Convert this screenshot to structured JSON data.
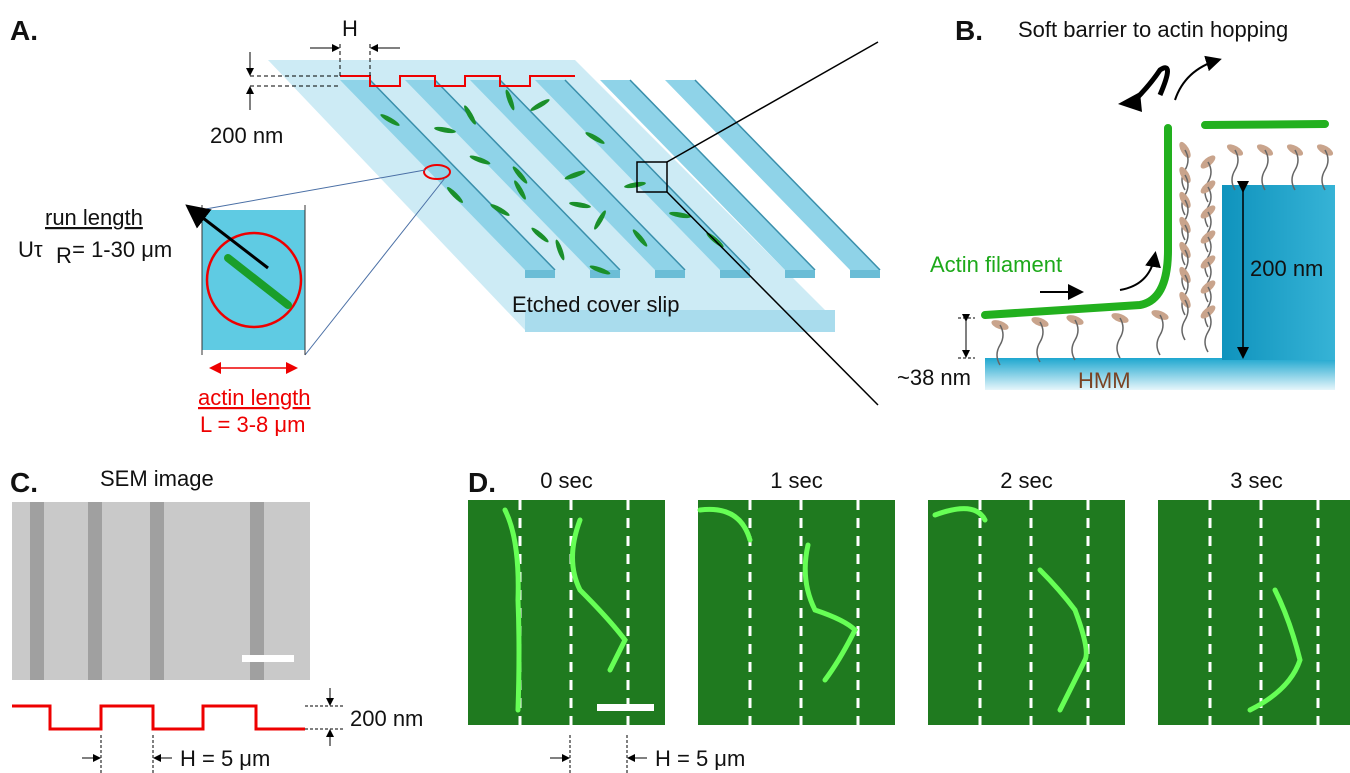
{
  "panels": {
    "a": {
      "label": "A.",
      "h_label": "H",
      "depth_label": "200 nm",
      "run_length": {
        "title": "run length",
        "formula_main": "Uτ",
        "formula_sub": "R",
        "formula_rest": " = 1-30 μm"
      },
      "actin_length": {
        "title": "actin length",
        "formula": "L = 3-8 μm"
      },
      "surface_label": "Etched cover slip"
    },
    "b": {
      "label": "B.",
      "barrier_label": "Soft barrier to actin hopping",
      "filament_label": "Actin filament",
      "height_label": "200 nm",
      "hmm_height_label": "~38 nm",
      "hmm_label": "HMM"
    },
    "c": {
      "label": "C.",
      "title": "SEM image",
      "depth_label": "200 nm",
      "spacing_label": "H = 5 μm"
    },
    "d": {
      "label": "D.",
      "frames": [
        "0 sec",
        "1 sec",
        "2 sec",
        "3 sec"
      ],
      "spacing_label": "H = 5 μm"
    }
  }
}
